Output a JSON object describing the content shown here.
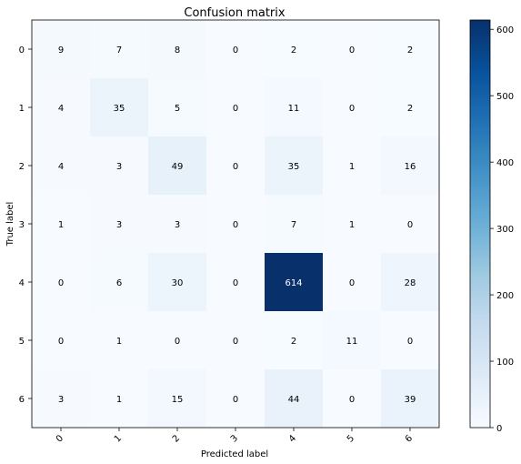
{
  "chart_data": {
    "type": "heatmap",
    "title": "Confusion matrix",
    "xlabel": "Predicted label",
    "ylabel": "True label",
    "x_categories": [
      "0",
      "1",
      "2",
      "3",
      "4",
      "5",
      "6"
    ],
    "y_categories": [
      "0",
      "1",
      "2",
      "3",
      "4",
      "5",
      "6"
    ],
    "values": [
      [
        9,
        7,
        8,
        0,
        2,
        0,
        2
      ],
      [
        4,
        35,
        5,
        0,
        11,
        0,
        2
      ],
      [
        4,
        3,
        49,
        0,
        35,
        1,
        16
      ],
      [
        1,
        3,
        3,
        0,
        7,
        1,
        0
      ],
      [
        0,
        6,
        30,
        0,
        614,
        0,
        28
      ],
      [
        0,
        1,
        0,
        0,
        2,
        11,
        0
      ],
      [
        3,
        1,
        15,
        0,
        44,
        0,
        39
      ]
    ],
    "colormap": "Blues",
    "color_low": "#f7fbff",
    "color_high": "#08306b",
    "colorbar": {
      "range": [
        0,
        614
      ],
      "ticks": [
        0,
        100,
        200,
        300,
        400,
        500,
        600
      ]
    },
    "text_color_dark": "#000000",
    "text_color_light": "#ffffff",
    "x_tick_rotation": 45,
    "grid": false,
    "legend": "colorbar-right"
  }
}
